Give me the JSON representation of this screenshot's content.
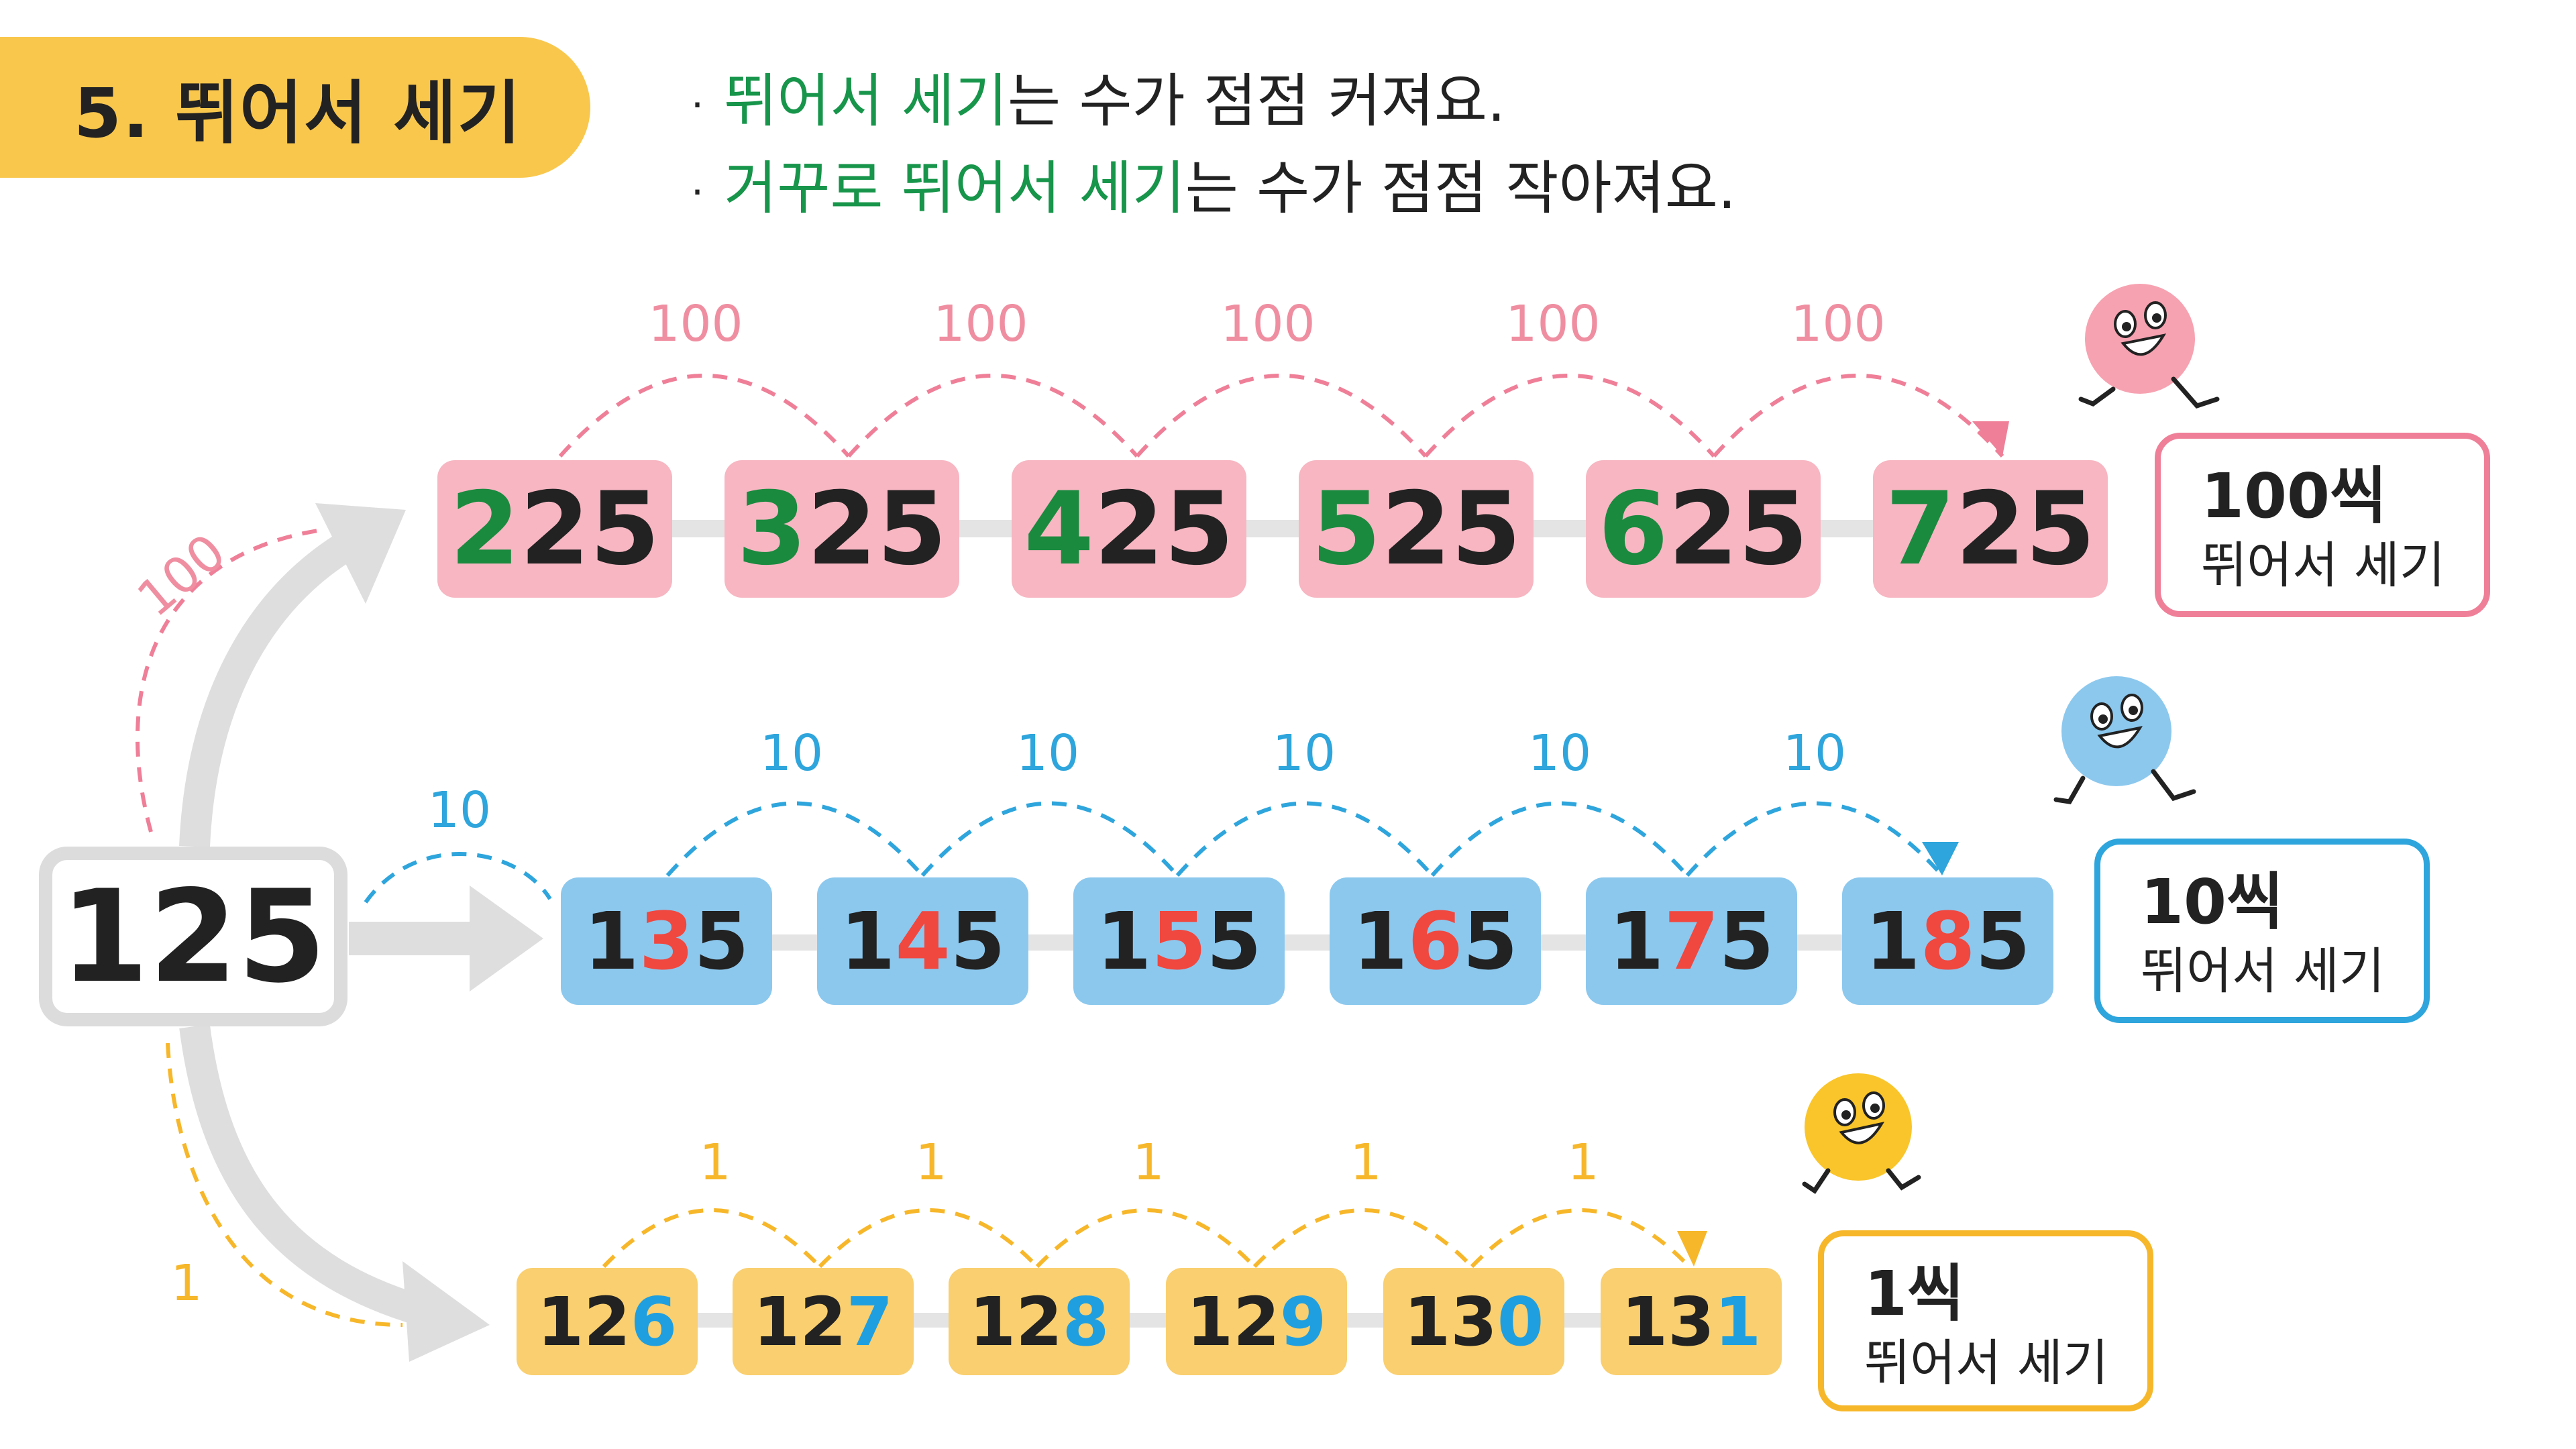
{
  "title": "5. 뛰어서 세기",
  "rules": [
    {
      "highlight": "뛰어서 세기",
      "rest": "는 수가 점점 커져요."
    },
    {
      "highlight": "거꾸로 뛰어서 세기",
      "rest": "는 수가 점점 작아져요."
    }
  ],
  "start_number": "125",
  "rows": {
    "hundreds": {
      "step_label": "100",
      "start_jump_label": "100",
      "jump_labels": [
        "100",
        "100",
        "100",
        "100",
        "100"
      ],
      "numbers": [
        {
          "changed": "2",
          "rest": "25"
        },
        {
          "changed": "3",
          "rest": "25"
        },
        {
          "changed": "4",
          "rest": "25"
        },
        {
          "changed": "5",
          "rest": "25"
        },
        {
          "changed": "6",
          "rest": "25"
        },
        {
          "changed": "7",
          "rest": "25"
        }
      ],
      "label_amount": "100씩",
      "label_text": "뛰어서 세기"
    },
    "tens": {
      "start_jump_label": "10",
      "jump_labels": [
        "10",
        "10",
        "10",
        "10",
        "10"
      ],
      "numbers": [
        {
          "pre": "1",
          "changed": "3",
          "post": "5"
        },
        {
          "pre": "1",
          "changed": "4",
          "post": "5"
        },
        {
          "pre": "1",
          "changed": "5",
          "post": "5"
        },
        {
          "pre": "1",
          "changed": "6",
          "post": "5"
        },
        {
          "pre": "1",
          "changed": "7",
          "post": "5"
        },
        {
          "pre": "1",
          "changed": "8",
          "post": "5"
        }
      ],
      "label_amount": "10씩",
      "label_text": "뛰어서 세기"
    },
    "ones": {
      "start_jump_label": "1",
      "jump_labels": [
        "1",
        "1",
        "1",
        "1",
        "1"
      ],
      "numbers": [
        {
          "pre": "12",
          "changed": "6"
        },
        {
          "pre": "12",
          "changed": "7"
        },
        {
          "pre": "12",
          "changed": "8"
        },
        {
          "pre": "12",
          "changed": "9"
        },
        {
          "pre": "13",
          "changed": "0"
        },
        {
          "pre": "13",
          "changed": "1"
        }
      ],
      "label_amount": "1씩",
      "label_text": "뛰어서 세기"
    }
  },
  "colors": {
    "title_bg": "#f9c74c",
    "highlight_green": "#17954a",
    "pink_box": "#f7b6c2",
    "pink_line": "#ef7f98",
    "blue_box": "#8cc8ee",
    "blue_line": "#2ea5dc",
    "yellow_box": "#f9cf6f",
    "yellow_line": "#f7b72a",
    "changed_digit_green": "#1a8a3f",
    "changed_digit_red": "#f0473f",
    "changed_digit_blue": "#1f9fe0"
  },
  "icons": [
    "pink-ball-character-icon",
    "blue-ball-character-icon",
    "yellow-ball-character-icon"
  ]
}
